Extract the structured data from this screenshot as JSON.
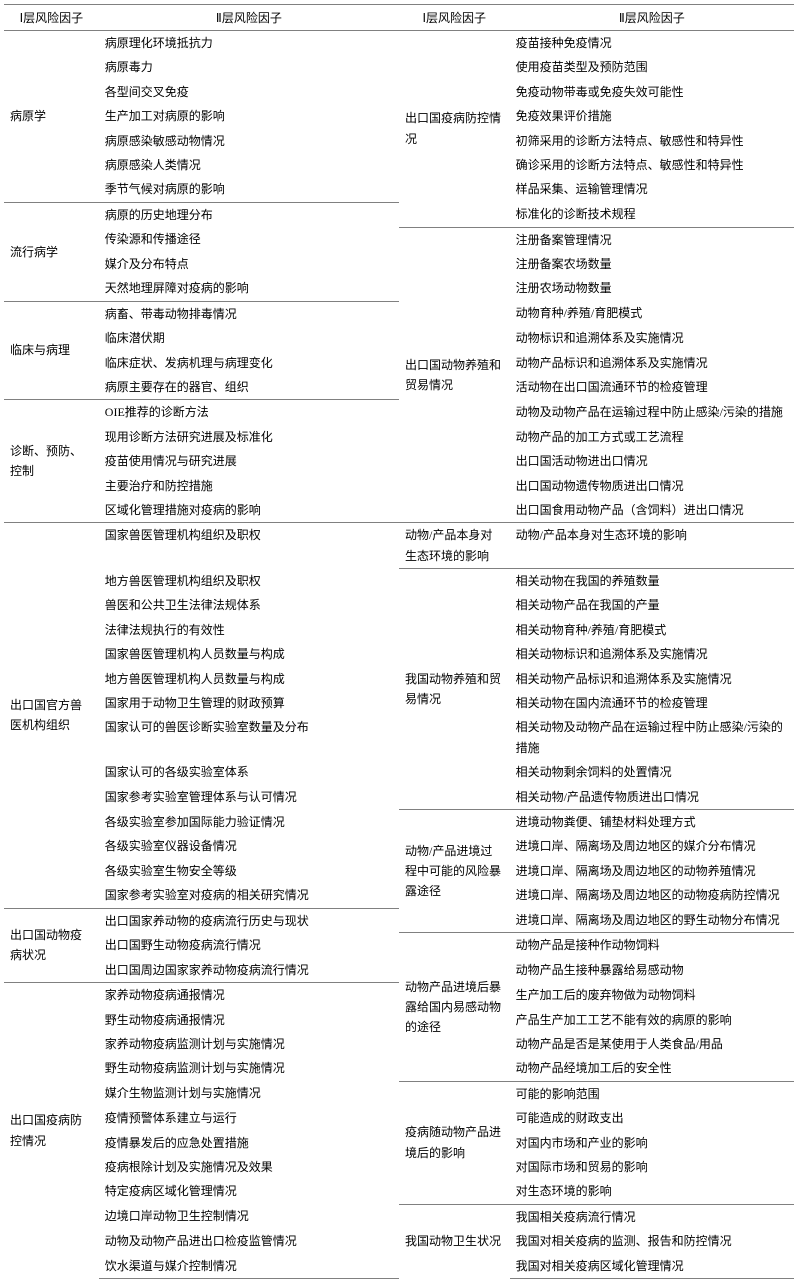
{
  "headers": {
    "h1": "Ⅰ层风险因子",
    "h2": "Ⅱ层风险因子",
    "h3": "Ⅰ层风险因子",
    "h4": "Ⅱ层风险因子"
  },
  "left": [
    {
      "title": "病原学",
      "items": [
        "病原理化环境抵抗力",
        "病原毒力",
        "各型间交叉免疫",
        "生产加工对病原的影响",
        "病原感染敏感动物情况",
        "病原感染人类情况",
        "季节气候对病原的影响"
      ]
    },
    {
      "title": "流行病学",
      "items": [
        "病原的历史地理分布",
        "传染源和传播途径",
        "媒介及分布特点",
        "天然地理屏障对疫病的影响"
      ]
    },
    {
      "title": "临床与病理",
      "items": [
        "病畜、带毒动物排毒情况",
        "临床潜伏期",
        "临床症状、发病机理与病理变化",
        "病原主要存在的器官、组织"
      ]
    },
    {
      "title": "诊断、预防、控制",
      "items": [
        "OIE推荐的诊断方法",
        "现用诊断方法研究进展及标准化",
        "疫苗使用情况与研究进展",
        "主要治疗和防控措施",
        "区域化管理措施对疫病的影响"
      ]
    },
    {
      "title": "出口国官方兽医机构组织",
      "items": [
        "国家兽医管理机构组织及职权",
        "地方兽医管理机构组织及职权",
        "兽医和公共卫生法律法规体系",
        "法律法规执行的有效性",
        "国家兽医管理机构人员数量与构成",
        "地方兽医管理机构人员数量与构成",
        "国家用于动物卫生管理的财政预算",
        "国家认可的兽医诊断实验室数量及分布",
        "国家认可的各级实验室体系",
        "国家参考实验室管理体系与认可情况",
        "各级实验室参加国际能力验证情况",
        "各级实验室仪器设备情况",
        "各级实验室生物安全等级",
        "国家参考实验室对疫病的相关研究情况"
      ]
    },
    {
      "title": "出口国动物疫病状况",
      "items": [
        "出口国家养动物的疫病流行历史与现状",
        "出口国野生动物疫病流行情况",
        "出口国周边国家家养动物疫病流行情况"
      ]
    },
    {
      "title": "出口国疫病防控情况",
      "items": [
        "家养动物疫病通报情况",
        "野生动物疫病通报情况",
        "家养动物疫病监测计划与实施情况",
        "野生动物疫病监测计划与实施情况",
        "媒介生物监测计划与实施情况",
        "疫情预警体系建立与运行",
        "疫情暴发后的应急处置措施",
        "疫病根除计划及实施情况及效果",
        "特定疫病区域化管理情况",
        "边境口岸动物卫生控制情况",
        "动物及动物产品进出口检疫监管情况",
        "饮水渠道与媒介控制情况"
      ]
    }
  ],
  "right": [
    {
      "title": "出口国疫病防控情况",
      "items": [
        "疫苗接种免疫情况",
        "使用疫苗类型及预防范围",
        "免疫动物带毒或免疫失效可能性",
        "免疫效果评价措施",
        "初筛采用的诊断方法特点、敏感性和特异性",
        "确诊采用的诊断方法特点、敏感性和特异性",
        "样品采集、运输管理情况",
        "标准化的诊断技术规程"
      ]
    },
    {
      "title": "出口国动物养殖和贸易情况",
      "items": [
        "注册备案管理情况",
        "注册备案农场数量",
        "注册农场动物数量",
        "动物育种/养殖/育肥模式",
        "动物标识和追溯体系及实施情况",
        "动物产品标识和追溯体系及实施情况",
        "活动物在出口国流通环节的检疫管理",
        "动物及动物产品在运输过程中防止感染/污染的措施",
        "动物产品的加工方式或工艺流程",
        "出口国活动物进出口情况",
        "出口国动物遗传物质进出口情况",
        "出口国食用动物产品（含饲料）进出口情况"
      ]
    },
    {
      "title": "动物/产品本身对生态环境的影响",
      "items": [
        "动物/产品本身对生态环境的影响"
      ]
    },
    {
      "title": "我国动物养殖和贸易情况",
      "items": [
        "相关动物在我国的养殖数量",
        "相关动物产品在我国的产量",
        "相关动物育种/养殖/育肥模式",
        "相关动物标识和追溯体系及实施情况",
        "相关动物产品标识和追溯体系及实施情况",
        "相关动物在国内流通环节的检疫管理",
        "相关动物及动物产品在运输过程中防止感染/污染的措施",
        "相关动物剩余饲料的处置情况",
        "相关动物/产品遗传物质进出口情况"
      ]
    },
    {
      "title": "动物/产品进境过程中可能的风险暴露途径",
      "items": [
        "进境动物粪便、铺垫材料处理方式",
        "进境口岸、隔离场及周边地区的媒介分布情况",
        "进境口岸、隔离场及周边地区的动物养殖情况",
        "进境口岸、隔离场及周边地区的动物疫病防控情况",
        "进境口岸、隔离场及周边地区的野生动物分布情况"
      ]
    },
    {
      "title": "动物产品进境后暴露给国内易感动物的途径",
      "items": [
        "动物产品是接种作动物饲料",
        "动物产品生接种暴露给易感动物",
        "生产加工后的废弃物做为动物饲料",
        "产品生产加工工艺不能有效的病原的影响",
        "动物产品是否是某使用于人类食品/用品",
        "动物产品经境加工后的安全性"
      ]
    },
    {
      "title": "疫病随动物产品进境后的影响",
      "items": [
        "可能的影响范围",
        "可能造成的财政支出",
        "对国内市场和产业的影响",
        "对国际市场和贸易的影响",
        "对生态环境的影响"
      ]
    },
    {
      "title": "我国动物卫生状况",
      "items": [
        "我国相关疫病流行情况",
        "我国对相关疫病的监测、报告和防控情况",
        "我国对相关疫病区域化管理情况"
      ]
    }
  ]
}
